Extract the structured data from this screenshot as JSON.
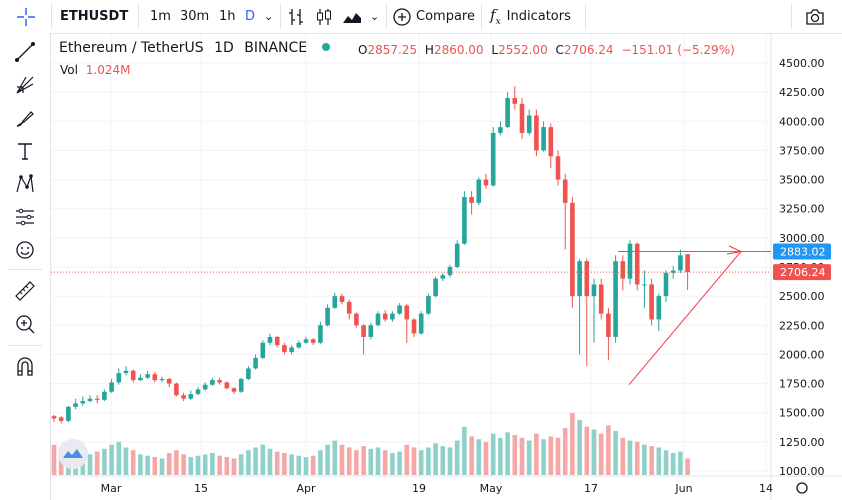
{
  "toolbar": {
    "symbol": "ETHUSDT",
    "intervals": [
      "1m",
      "30m",
      "1h",
      "D"
    ],
    "active_interval": "D",
    "compare_label": "Compare",
    "indicators_label": "Indicators"
  },
  "legend": {
    "pair": "Ethereum / TetherUS",
    "interval": "1D",
    "exchange": "BINANCE",
    "open_label": "O",
    "open": "2857.25",
    "high_label": "H",
    "high": "2860.00",
    "low_label": "L",
    "low": "2552.00",
    "close_label": "C",
    "close": "2706.24",
    "change": "−151.01 (−5.29%)",
    "vol_label": "Vol",
    "vol_value": "1.024M"
  },
  "price_axis": {
    "ticks": [
      "4500.00",
      "4250.00",
      "4000.00",
      "3750.00",
      "3500.00",
      "3250.00",
      "3000.00",
      "2750.00",
      "2500.00",
      "2250.00",
      "2000.00",
      "1750.00",
      "1500.00",
      "1250.00",
      "1000.00"
    ],
    "tick_values": [
      4500,
      4250,
      4000,
      3750,
      3500,
      3250,
      3000,
      2750,
      2500,
      2250,
      2000,
      1750,
      1500,
      1250,
      1000
    ],
    "last_price": "2706.24",
    "line_price": "2883.02"
  },
  "time_axis": {
    "labels": [
      "Mar",
      "15",
      "Apr",
      "19",
      "May",
      "17",
      "Jun",
      "14"
    ]
  },
  "colors": {
    "up": "#26a69a",
    "down": "#ef5350",
    "volume_up": "#8fd1c9",
    "volume_down": "#f4a7a5",
    "blue_line": "#2196f3",
    "trend_line": "#f23645"
  },
  "chart_data": {
    "type": "candlestick",
    "title": "Ethereum / TetherUS 1D BINANCE",
    "ylim": [
      1000,
      4600
    ],
    "candles": [
      [
        1470,
        1450,
        1480,
        1420,
        22
      ],
      [
        1460,
        1430,
        1470,
        1410,
        20
      ],
      [
        1430,
        1550,
        1560,
        1420,
        24
      ],
      [
        1550,
        1580,
        1620,
        1530,
        18
      ],
      [
        1580,
        1600,
        1640,
        1560,
        16
      ],
      [
        1600,
        1620,
        1650,
        1590,
        15
      ],
      [
        1620,
        1610,
        1650,
        1580,
        17
      ],
      [
        1610,
        1680,
        1700,
        1600,
        19
      ],
      [
        1680,
        1760,
        1790,
        1670,
        22
      ],
      [
        1760,
        1840,
        1880,
        1740,
        24
      ],
      [
        1840,
        1860,
        1900,
        1820,
        20
      ],
      [
        1860,
        1780,
        1870,
        1760,
        18
      ],
      [
        1780,
        1800,
        1830,
        1770,
        15
      ],
      [
        1800,
        1830,
        1860,
        1790,
        14
      ],
      [
        1830,
        1780,
        1850,
        1760,
        13
      ],
      [
        1780,
        1790,
        1810,
        1760,
        12
      ],
      [
        1790,
        1750,
        1800,
        1720,
        16
      ],
      [
        1750,
        1650,
        1760,
        1640,
        18
      ],
      [
        1650,
        1620,
        1670,
        1600,
        15
      ],
      [
        1620,
        1660,
        1690,
        1610,
        13
      ],
      [
        1660,
        1700,
        1720,
        1650,
        14
      ],
      [
        1700,
        1740,
        1760,
        1690,
        15
      ],
      [
        1740,
        1780,
        1800,
        1730,
        16
      ],
      [
        1780,
        1760,
        1800,
        1740,
        14
      ],
      [
        1760,
        1710,
        1770,
        1700,
        13
      ],
      [
        1710,
        1680,
        1720,
        1660,
        12
      ],
      [
        1680,
        1790,
        1800,
        1670,
        15
      ],
      [
        1790,
        1880,
        1900,
        1780,
        18
      ],
      [
        1880,
        1970,
        2000,
        1870,
        20
      ],
      [
        1970,
        2100,
        2120,
        1960,
        22
      ],
      [
        2100,
        2150,
        2180,
        2080,
        19
      ],
      [
        2150,
        2080,
        2160,
        2060,
        17
      ],
      [
        2080,
        2020,
        2100,
        2000,
        16
      ],
      [
        2020,
        2060,
        2080,
        2000,
        15
      ],
      [
        2060,
        2100,
        2120,
        2050,
        14
      ],
      [
        2100,
        2130,
        2150,
        2090,
        13
      ],
      [
        2130,
        2100,
        2140,
        2080,
        14
      ],
      [
        2100,
        2250,
        2280,
        2090,
        18
      ],
      [
        2250,
        2400,
        2430,
        2240,
        22
      ],
      [
        2400,
        2500,
        2530,
        2390,
        25
      ],
      [
        2500,
        2450,
        2520,
        2430,
        22
      ],
      [
        2450,
        2350,
        2470,
        2300,
        20
      ],
      [
        2350,
        2250,
        2360,
        2230,
        18
      ],
      [
        2250,
        2150,
        2260,
        2000,
        21
      ],
      [
        2150,
        2250,
        2270,
        2130,
        19
      ],
      [
        2250,
        2350,
        2370,
        2240,
        20
      ],
      [
        2350,
        2300,
        2380,
        2280,
        18
      ],
      [
        2300,
        2350,
        2370,
        2280,
        16
      ],
      [
        2350,
        2420,
        2440,
        2340,
        17
      ],
      [
        2420,
        2300,
        2430,
        2100,
        22
      ],
      [
        2300,
        2180,
        2310,
        2150,
        20
      ],
      [
        2180,
        2350,
        2370,
        2170,
        18
      ],
      [
        2350,
        2500,
        2520,
        2340,
        20
      ],
      [
        2500,
        2650,
        2670,
        2490,
        23
      ],
      [
        2650,
        2680,
        2700,
        2630,
        21
      ],
      [
        2680,
        2750,
        2770,
        2660,
        20
      ],
      [
        2750,
        2950,
        2980,
        2740,
        25
      ],
      [
        2950,
        3350,
        3400,
        2940,
        35
      ],
      [
        3350,
        3300,
        3400,
        3200,
        28
      ],
      [
        3300,
        3500,
        3520,
        3280,
        26
      ],
      [
        3500,
        3450,
        3550,
        3420,
        24
      ],
      [
        3450,
        3900,
        3950,
        3440,
        30
      ],
      [
        3900,
        3950,
        4000,
        3880,
        27
      ],
      [
        3950,
        4200,
        4250,
        3940,
        31
      ],
      [
        4200,
        4150,
        4300,
        4100,
        29
      ],
      [
        4150,
        3900,
        4200,
        3850,
        27
      ],
      [
        3900,
        4050,
        4100,
        3880,
        25
      ],
      [
        4050,
        3750,
        4100,
        3700,
        30
      ],
      [
        3750,
        3950,
        4000,
        3740,
        26
      ],
      [
        3950,
        3700,
        3980,
        3600,
        28
      ],
      [
        3700,
        3500,
        3750,
        3450,
        27
      ],
      [
        3500,
        3300,
        3550,
        2900,
        34
      ],
      [
        3300,
        2500,
        3350,
        2400,
        45
      ],
      [
        2500,
        2800,
        2820,
        2000,
        40
      ],
      [
        2800,
        2500,
        2820,
        1900,
        35
      ],
      [
        2500,
        2600,
        2650,
        2100,
        33
      ],
      [
        2600,
        2350,
        2650,
        2300,
        30
      ],
      [
        2350,
        2150,
        2400,
        1950,
        36
      ],
      [
        2150,
        2800,
        2850,
        2100,
        32
      ],
      [
        2800,
        2650,
        2850,
        2550,
        27
      ],
      [
        2650,
        2950,
        2980,
        2600,
        25
      ],
      [
        2950,
        2600,
        2960,
        2550,
        24
      ],
      [
        2600,
        2600,
        2720,
        2400,
        22
      ],
      [
        2600,
        2300,
        2650,
        2250,
        21
      ],
      [
        2300,
        2500,
        2520,
        2200,
        20
      ],
      [
        2500,
        2700,
        2720,
        2450,
        18
      ],
      [
        2700,
        2720,
        2760,
        2650,
        16
      ],
      [
        2720,
        2850,
        2900,
        2700,
        17
      ],
      [
        2860,
        2706,
        2860,
        2552,
        12
      ]
    ],
    "price_line": 2883.02,
    "last_price": 2706.24
  }
}
